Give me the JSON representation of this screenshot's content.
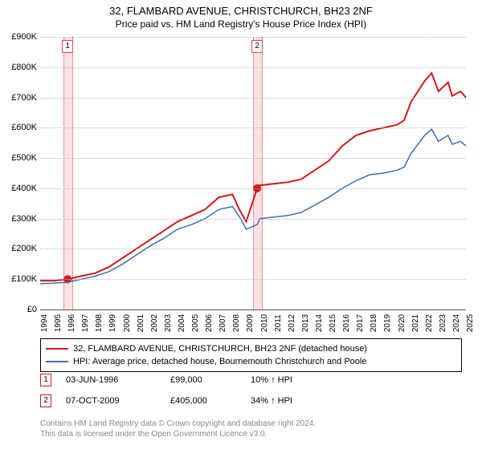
{
  "title_main": "32, FLAMBARD AVENUE, CHRISTCHURCH, BH23 2NF",
  "title_sub": "Price paid vs. HM Land Registry's House Price Index (HPI)",
  "chart": {
    "type": "line",
    "background_color": "#ffffff",
    "grid_color": "#bbbbbb",
    "axis_color": "#555555",
    "ylim": [
      0,
      900
    ],
    "y_unit_suffix": "K",
    "y_prefix": "£",
    "ytick_step": 100,
    "y_ticks": [
      "£0",
      "£100K",
      "£200K",
      "£300K",
      "£400K",
      "£500K",
      "£600K",
      "£700K",
      "£800K",
      "£900K"
    ],
    "x_years": [
      1994,
      1995,
      1996,
      1997,
      1998,
      1999,
      2000,
      2001,
      2002,
      2003,
      2004,
      2005,
      2006,
      2007,
      2008,
      2009,
      2010,
      2011,
      2012,
      2013,
      2014,
      2015,
      2016,
      2017,
      2018,
      2019,
      2020,
      2021,
      2022,
      2023,
      2024,
      2025
    ],
    "xlim_year": [
      1994,
      2025
    ],
    "band_color": "#fde0e0",
    "band_border_color": "#d94b4b",
    "bands": [
      {
        "year": 1996,
        "label": "1"
      },
      {
        "year": 2009.8,
        "label": "2"
      }
    ],
    "marker_size": 5,
    "series": [
      {
        "name": "property",
        "color": "#d11919",
        "line_width": 2,
        "points_year_value": [
          [
            1994,
            95
          ],
          [
            1995,
            95
          ],
          [
            1996,
            100
          ],
          [
            1997,
            110
          ],
          [
            1998,
            120
          ],
          [
            1999,
            140
          ],
          [
            2000,
            170
          ],
          [
            2001,
            200
          ],
          [
            2002,
            230
          ],
          [
            2003,
            260
          ],
          [
            2004,
            290
          ],
          [
            2005,
            310
          ],
          [
            2006,
            330
          ],
          [
            2007,
            370
          ],
          [
            2008,
            380
          ],
          [
            2008.5,
            330
          ],
          [
            2009,
            290
          ],
          [
            2009.8,
            400
          ],
          [
            2010,
            410
          ],
          [
            2011,
            415
          ],
          [
            2012,
            420
          ],
          [
            2013,
            430
          ],
          [
            2014,
            460
          ],
          [
            2015,
            490
          ],
          [
            2016,
            540
          ],
          [
            2017,
            575
          ],
          [
            2018,
            590
          ],
          [
            2019,
            600
          ],
          [
            2020,
            610
          ],
          [
            2020.5,
            625
          ],
          [
            2021,
            685
          ],
          [
            2022,
            755
          ],
          [
            2022.5,
            780
          ],
          [
            2023,
            720
          ],
          [
            2023.7,
            750
          ],
          [
            2024,
            705
          ],
          [
            2024.6,
            720
          ],
          [
            2025,
            700
          ]
        ],
        "sale_markers_year_value": [
          [
            1996,
            100
          ],
          [
            2009.8,
            400
          ]
        ]
      },
      {
        "name": "hpi",
        "color": "#3b6fb5",
        "line_width": 1.5,
        "points_year_value": [
          [
            1994,
            85
          ],
          [
            1995,
            87
          ],
          [
            1996,
            90
          ],
          [
            1997,
            100
          ],
          [
            1998,
            110
          ],
          [
            1999,
            125
          ],
          [
            2000,
            150
          ],
          [
            2001,
            180
          ],
          [
            2002,
            210
          ],
          [
            2003,
            235
          ],
          [
            2004,
            265
          ],
          [
            2005,
            280
          ],
          [
            2006,
            300
          ],
          [
            2007,
            330
          ],
          [
            2008,
            340
          ],
          [
            2008.6,
            300
          ],
          [
            2009,
            265
          ],
          [
            2009.8,
            280
          ],
          [
            2010,
            300
          ],
          [
            2011,
            305
          ],
          [
            2012,
            310
          ],
          [
            2013,
            320
          ],
          [
            2014,
            345
          ],
          [
            2015,
            370
          ],
          [
            2016,
            400
          ],
          [
            2017,
            425
          ],
          [
            2018,
            445
          ],
          [
            2019,
            450
          ],
          [
            2020,
            460
          ],
          [
            2020.5,
            470
          ],
          [
            2021,
            515
          ],
          [
            2022,
            575
          ],
          [
            2022.5,
            595
          ],
          [
            2023,
            555
          ],
          [
            2023.7,
            575
          ],
          [
            2024,
            545
          ],
          [
            2024.6,
            555
          ],
          [
            2025,
            540
          ]
        ]
      }
    ]
  },
  "legend": {
    "series1_label": "32, FLAMBARD AVENUE, CHRISTCHURCH, BH23 2NF (detached house)",
    "series1_color": "#d11919",
    "series2_label": "HPI: Average price, detached house, Bournemouth Christchurch and Poole",
    "series2_color": "#3b6fb5"
  },
  "sales": [
    {
      "num": "1",
      "date": "03-JUN-1996",
      "price": "£99,000",
      "hpi_delta": "10% ↑ HPI",
      "border_color": "#d11919"
    },
    {
      "num": "2",
      "date": "07-OCT-2009",
      "price": "£405,000",
      "hpi_delta": "34% ↑ HPI",
      "border_color": "#d11919"
    }
  ],
  "footer_line1": "Contains HM Land Registry data © Crown copyright and database right 2024.",
  "footer_line2": "This data is licensed under the Open Government Licence v3.0.",
  "fonts": {
    "title_fontsize": 13,
    "subtitle_fontsize": 12,
    "axis_tick_fontsize": 11,
    "x_tick_fontsize": 10,
    "legend_fontsize": 11,
    "footer_fontsize": 10,
    "footer_color": "#888888"
  }
}
